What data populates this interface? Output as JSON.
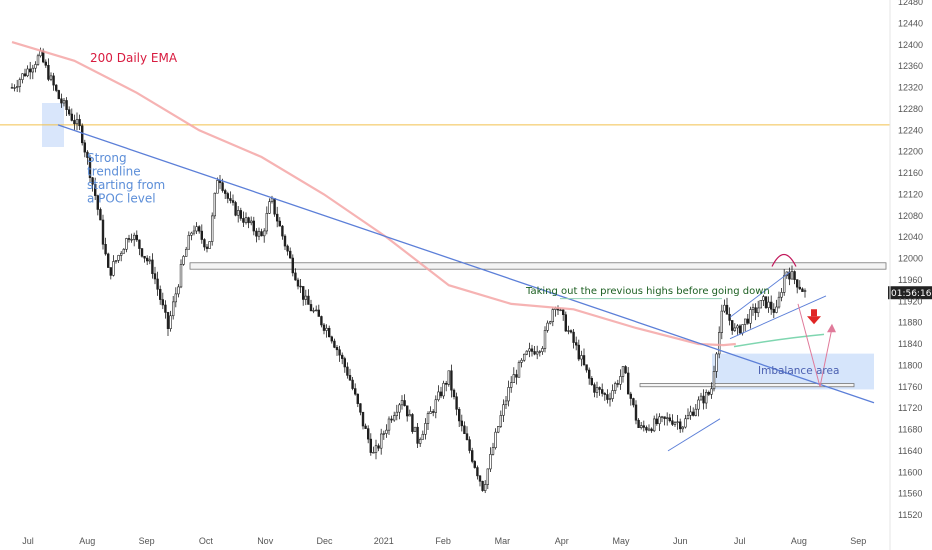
{
  "chart_data": {
    "type": "candlestick",
    "x_ticks": [
      "Jul",
      "Aug",
      "Sep",
      "Oct",
      "Nov",
      "Dec",
      "2021",
      "Feb",
      "Mar",
      "Apr",
      "May",
      "Jun",
      "Jul",
      "Aug",
      "Sep"
    ],
    "y_ticks": [
      12480,
      12440,
      12400,
      12360,
      12320,
      12280,
      12240,
      12200,
      12160,
      12120,
      12080,
      12040,
      12000,
      11960,
      11920,
      11880,
      11840,
      11800,
      11760,
      11720,
      11680,
      11640,
      11600,
      11560,
      11520
    ],
    "ylim": [
      11505,
      12490
    ],
    "price_path": [
      [
        0,
        12320
      ],
      [
        0.9,
        12380
      ],
      [
        1.5,
        12300
      ],
      [
        2.2,
        12240
      ],
      [
        2.7,
        12110
      ],
      [
        3.1,
        11970
      ],
      [
        3.8,
        12050
      ],
      [
        4.5,
        11980
      ],
      [
        5.0,
        11870
      ],
      [
        5.5,
        12000
      ],
      [
        5.8,
        12060
      ],
      [
        6.3,
        12020
      ],
      [
        6.6,
        12160
      ],
      [
        7.0,
        12100
      ],
      [
        7.5,
        12070
      ],
      [
        8.0,
        12040
      ],
      [
        8.3,
        12110
      ],
      [
        8.9,
        12000
      ],
      [
        9.4,
        11920
      ],
      [
        10.2,
        11860
      ],
      [
        10.8,
        11780
      ],
      [
        11.2,
        11700
      ],
      [
        11.6,
        11630
      ],
      [
        12.1,
        11700
      ],
      [
        12.5,
        11740
      ],
      [
        13.0,
        11660
      ],
      [
        13.5,
        11720
      ],
      [
        14.0,
        11780
      ],
      [
        14.3,
        11700
      ],
      [
        14.8,
        11620
      ],
      [
        15.1,
        11570
      ],
      [
        15.6,
        11690
      ],
      [
        16.0,
        11770
      ],
      [
        16.5,
        11820
      ],
      [
        17.0,
        11840
      ],
      [
        17.4,
        11920
      ],
      [
        17.7,
        11880
      ],
      [
        18.1,
        11830
      ],
      [
        18.6,
        11760
      ],
      [
        19.1,
        11740
      ],
      [
        19.6,
        11790
      ],
      [
        20.1,
        11680
      ],
      [
        20.6,
        11690
      ],
      [
        21.1,
        11700
      ],
      [
        21.5,
        11690
      ],
      [
        22.0,
        11730
      ],
      [
        22.4,
        11750
      ],
      [
        22.55,
        11820
      ],
      [
        22.8,
        11910
      ],
      [
        23.2,
        11860
      ],
      [
        23.6,
        11890
      ],
      [
        24.1,
        11920
      ],
      [
        24.5,
        11900
      ],
      [
        24.8,
        11980
      ],
      [
        25.1,
        11960
      ],
      [
        25.5,
        11930
      ]
    ],
    "ema_points": [
      [
        0,
        12405
      ],
      [
        2,
        12370
      ],
      [
        4,
        12310
      ],
      [
        6,
        12240
      ],
      [
        8,
        12190
      ],
      [
        10,
        12120
      ],
      [
        12,
        12040
      ],
      [
        14,
        11950
      ],
      [
        16,
        11915
      ],
      [
        18,
        11905
      ],
      [
        20,
        11870
      ],
      [
        22,
        11840
      ],
      [
        22.8,
        11838
      ],
      [
        23.2,
        11840
      ]
    ],
    "annotations": {
      "ema_label": "200 Daily EMA",
      "trend_label": "Strong trendline starting from a POC level",
      "trend_label_lines": [
        "Strong",
        "trendline",
        "starting from",
        "a POC level"
      ],
      "highs_label": "Taking out the previous highs before going down",
      "imbalance_label": "Imbalance area",
      "price_marker": "01:56:16",
      "price_level": 11935
    },
    "colors": {
      "candle": "#1f1f1f",
      "ema": "#f4a6a6",
      "trendline": "#5c7fd8",
      "ema_label": "#d81b3f",
      "trend_label": "#5c8ed8",
      "highs_label": "#1b5e20",
      "imbalance_label": "#4a5fb0",
      "imbalance_fill": "#cfe0fa",
      "horizontal_line": "#f2c14e",
      "arrow_red": "#e02424"
    }
  }
}
